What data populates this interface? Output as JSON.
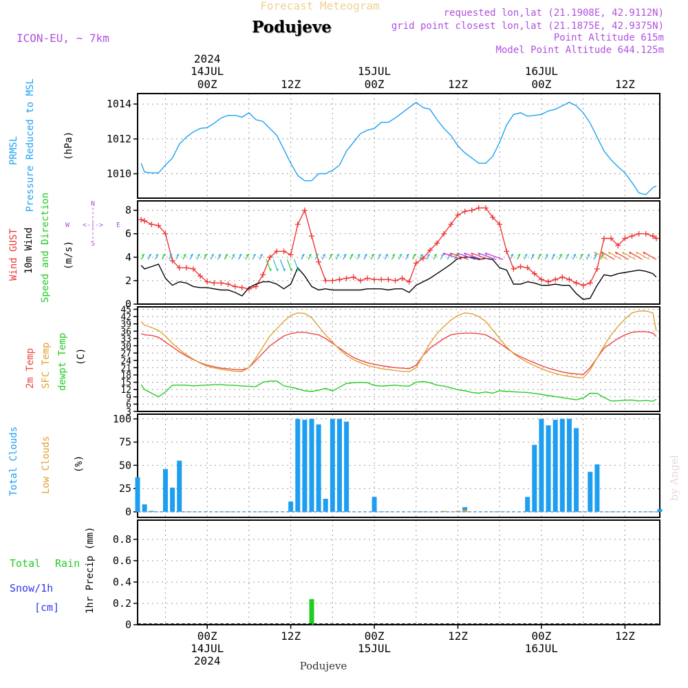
{
  "header": {
    "subtitle": "Forecast Meteogram",
    "title": "Podujeve",
    "model": "ICON-EU, ~ 7km",
    "requested": "requested lon,lat (21.1908E, 42.9112N)",
    "grid": "grid point closest lon,lat (21.1875E, 42.9375N)",
    "point_altitude": "Point Altitude 615m",
    "model_altitude": "Model Point Altitude 644.125m",
    "footer_place": "Podujeve",
    "watermark": "by Angel"
  },
  "time_axis": {
    "top_year": "2024",
    "ticks": [
      {
        "t": 0,
        "label": "00Z",
        "date": "14JUL",
        "year": "2024"
      },
      {
        "t": 12,
        "label": "12Z",
        "date": "",
        "year": ""
      },
      {
        "t": 24,
        "label": "00Z",
        "date": "15JUL",
        "year": ""
      },
      {
        "t": 36,
        "label": "12Z",
        "date": "",
        "year": ""
      },
      {
        "t": 48,
        "label": "00Z",
        "date": "16JUL",
        "year": ""
      },
      {
        "t": 60,
        "label": "12Z",
        "date": "",
        "year": ""
      }
    ],
    "bottom_year": "2024"
  },
  "colors": {
    "pressure": "#1da1f2",
    "gust": "#ee3333",
    "wind10m": "#000000",
    "wind_dir": "#22cc22",
    "t2m": "#ee4444",
    "sfc": "#e0a030",
    "dewpt": "#22cc22",
    "clouds": "#1e9ef0",
    "low_clouds": "#e0a030",
    "rain": "#22cc22",
    "snow": "#3333ee",
    "labels_purple": "#b050e0"
  },
  "panels": {
    "pressure": {
      "label1": "PRMSL",
      "label2": "Pressure Reduced to MSL",
      "unit": "(hPa)"
    },
    "wind": {
      "label1": "Wind GUST",
      "label2": "10m Wind",
      "label3": "Speed and Direction",
      "unit": "(m/s)",
      "compass_n": "N",
      "compass_s": "S",
      "compass_w": "W",
      "compass_e": "E",
      "compass_mid": "<-|->"
    },
    "temp": {
      "label1": "2m Temp",
      "label2": "SFC Temp",
      "label3": "dewpt Temp",
      "unit": "(C)"
    },
    "clouds": {
      "label1": "Total Clouds",
      "label2": "Low Clouds",
      "unit": "(%)"
    },
    "precip": {
      "label1": "Total",
      "label1b": "Rain",
      "label2": "Snow/1h",
      "label3": "[cm]",
      "unit": "1hr Precip (mm)"
    }
  },
  "chart_data": [
    {
      "type": "line",
      "title": "PRMSL Pressure Reduced to MSL",
      "ylabel": "(hPa)",
      "ylim": [
        1008.6,
        1014.6
      ],
      "yticks": [
        1010,
        1012,
        1014
      ],
      "x": [
        -9.5,
        -9,
        -8,
        -7,
        -6,
        -5,
        -4,
        -3,
        -2,
        -1,
        0,
        1,
        2,
        3,
        4,
        5,
        6,
        7,
        8,
        9,
        10,
        11,
        12,
        13,
        14,
        15,
        16,
        17,
        18,
        19,
        20,
        21,
        22,
        23,
        24,
        25,
        26,
        27,
        28,
        29,
        30,
        31,
        32,
        33,
        34,
        35,
        36,
        37,
        38,
        39,
        40,
        41,
        42,
        43,
        44,
        45,
        46,
        47,
        48,
        49,
        50,
        51,
        52,
        53,
        54,
        55,
        56,
        57,
        58,
        59,
        60,
        61,
        62,
        63,
        64,
        64.5
      ],
      "series": [
        {
          "name": "PRMSL",
          "values": [
            1010.6,
            1010.1,
            1010.05,
            1010.05,
            1010.5,
            1010.9,
            1011.7,
            1012.1,
            1012.4,
            1012.6,
            1012.65,
            1012.9,
            1013.2,
            1013.35,
            1013.35,
            1013.25,
            1013.5,
            1013.1,
            1013.0,
            1012.6,
            1012.2,
            1011.4,
            1010.6,
            1009.9,
            1009.6,
            1009.6,
            1010.0,
            1010.0,
            1010.2,
            1010.5,
            1011.3,
            1011.8,
            1012.3,
            1012.5,
            1012.6,
            1012.95,
            1012.95,
            1013.2,
            1013.5,
            1013.8,
            1014.1,
            1013.8,
            1013.7,
            1013.1,
            1012.6,
            1012.2,
            1011.6,
            1011.2,
            1010.9,
            1010.6,
            1010.6,
            1011.0,
            1011.8,
            1012.8,
            1013.4,
            1013.5,
            1013.3,
            1013.35,
            1013.4,
            1013.6,
            1013.7,
            1013.9,
            1014.1,
            1013.9,
            1013.5,
            1012.9,
            1012.1,
            1011.3,
            1010.8,
            1010.4,
            1010.05,
            1009.5,
            1008.9,
            1008.8,
            1009.2,
            1009.3
          ]
        }
      ]
    },
    {
      "type": "line",
      "title": "Wind GUST / 10m Wind",
      "ylabel": "(m/s)",
      "ylim": [
        0,
        8.8
      ],
      "yticks": [
        0,
        2,
        4,
        6,
        8
      ],
      "x": [
        -9.5,
        -9,
        -8,
        -7,
        -6,
        -5,
        -4,
        -3,
        -2,
        -1,
        0,
        1,
        2,
        3,
        4,
        5,
        6,
        7,
        8,
        9,
        10,
        11,
        12,
        13,
        14,
        15,
        16,
        17,
        18,
        19,
        20,
        21,
        22,
        23,
        24,
        25,
        26,
        27,
        28,
        29,
        30,
        31,
        32,
        33,
        34,
        35,
        36,
        37,
        38,
        39,
        40,
        41,
        42,
        43,
        44,
        45,
        46,
        47,
        48,
        49,
        50,
        51,
        52,
        53,
        54,
        55,
        56,
        57,
        58,
        59,
        60,
        61,
        62,
        63,
        64,
        64.5
      ],
      "series": [
        {
          "name": "Wind GUST",
          "values": [
            7.2,
            7.1,
            6.8,
            6.7,
            6.0,
            3.7,
            3.1,
            3.1,
            3.0,
            2.4,
            1.9,
            1.8,
            1.8,
            1.7,
            1.5,
            1.4,
            1.3,
            1.5,
            2.5,
            4.0,
            4.5,
            4.5,
            4.2,
            6.8,
            8.0,
            5.8,
            3.6,
            2.0,
            2.0,
            2.1,
            2.2,
            2.3,
            2.0,
            2.2,
            2.1,
            2.1,
            2.1,
            2.0,
            2.2,
            1.9,
            3.5,
            3.9,
            4.6,
            5.2,
            6.0,
            6.8,
            7.6,
            7.9,
            8.0,
            8.2,
            8.2,
            7.4,
            6.8,
            4.5,
            3.0,
            3.2,
            3.1,
            2.6,
            2.1,
            1.9,
            2.1,
            2.3,
            2.1,
            1.8,
            1.6,
            1.8,
            3.0,
            5.6,
            5.6,
            5.0,
            5.6,
            5.8,
            6.0,
            6.0,
            5.8,
            5.6
          ]
        },
        {
          "name": "10m Wind",
          "values": [
            3.3,
            3.0,
            3.2,
            3.4,
            2.2,
            1.6,
            1.9,
            1.8,
            1.5,
            1.4,
            1.4,
            1.3,
            1.2,
            1.2,
            1.0,
            0.7,
            1.4,
            1.7,
            1.9,
            1.9,
            1.7,
            1.3,
            1.7,
            3.1,
            2.4,
            1.5,
            1.2,
            1.3,
            1.2,
            1.2,
            1.2,
            1.2,
            1.2,
            1.3,
            1.3,
            1.3,
            1.2,
            1.3,
            1.3,
            1.0,
            1.6,
            1.9,
            2.2,
            2.6,
            3.0,
            3.4,
            3.9,
            4.0,
            4.0,
            3.8,
            3.9,
            3.8,
            3.1,
            2.9,
            1.7,
            1.7,
            1.9,
            1.8,
            1.6,
            1.6,
            1.7,
            1.6,
            1.6,
            0.9,
            0.4,
            0.5,
            1.6,
            2.5,
            2.4,
            2.6,
            2.7,
            2.8,
            2.9,
            2.8,
            2.6,
            2.3
          ]
        }
      ]
    },
    {
      "type": "line",
      "title": "2m Temp / SFC Temp / dewpt Temp",
      "ylabel": "(C)",
      "ylim": [
        3,
        46
      ],
      "yticks": [
        3,
        6,
        9,
        12,
        15,
        18,
        21,
        24,
        27,
        30,
        33,
        36,
        39,
        42,
        45
      ],
      "x": [
        -9.5,
        -9,
        -8,
        -7,
        -6,
        -5,
        -4,
        -3,
        -2,
        -1,
        0,
        1,
        2,
        3,
        4,
        5,
        6,
        7,
        8,
        9,
        10,
        11,
        12,
        13,
        14,
        15,
        16,
        17,
        18,
        19,
        20,
        21,
        22,
        23,
        24,
        25,
        26,
        27,
        28,
        29,
        30,
        31,
        32,
        33,
        34,
        35,
        36,
        37,
        38,
        39,
        40,
        41,
        42,
        43,
        44,
        45,
        46,
        47,
        48,
        49,
        50,
        51,
        52,
        53,
        54,
        55,
        56,
        57,
        58,
        59,
        60,
        61,
        62,
        63,
        64,
        64.5
      ],
      "series": [
        {
          "name": "2m Temp",
          "values": [
            35,
            34.5,
            34.3,
            33.5,
            31.5,
            29.5,
            27.5,
            25.8,
            24.3,
            23,
            22,
            21.4,
            20.8,
            20.5,
            20.2,
            20.1,
            21,
            24,
            27,
            30,
            32,
            34,
            35,
            35.5,
            35.5,
            35,
            34.5,
            33,
            31,
            29,
            27,
            25.2,
            24,
            23,
            22.4,
            21.8,
            21.4,
            21,
            20.8,
            20.6,
            22,
            26,
            29,
            31,
            33,
            34.5,
            35,
            35.2,
            35.2,
            35,
            34.5,
            33,
            31,
            29,
            27,
            25.5,
            24.2,
            23,
            21.8,
            20.8,
            20,
            19.2,
            18.7,
            18.4,
            18.2,
            21,
            25,
            29,
            31,
            33,
            34.5,
            35.5,
            35.8,
            35.8,
            35.2,
            33.8
          ]
        },
        {
          "name": "SFC Temp",
          "values": [
            40,
            38.5,
            37.5,
            36.3,
            34,
            31,
            28.5,
            26.3,
            24.5,
            22.8,
            21.6,
            20.9,
            20.3,
            19.9,
            19.5,
            19.4,
            21,
            25,
            29.5,
            34,
            37,
            40,
            42.5,
            43.5,
            43.3,
            41.5,
            38,
            34.5,
            31.5,
            28.5,
            26,
            24.3,
            23,
            21.9,
            21.2,
            20.6,
            20.2,
            19.8,
            19.5,
            19.3,
            21,
            26,
            31,
            35,
            38,
            40.5,
            42.5,
            43.5,
            43.2,
            42,
            40,
            36.5,
            33,
            29.5,
            26.8,
            24.8,
            23.2,
            21.8,
            20.6,
            19.5,
            18.6,
            17.9,
            17.4,
            17,
            16.8,
            20,
            25,
            30,
            34.5,
            38,
            41,
            43.5,
            44.3,
            44.3,
            43.5,
            36
          ]
        },
        {
          "name": "dewpt Temp",
          "values": [
            14,
            12,
            10.5,
            9,
            11,
            13.8,
            13.8,
            13.8,
            13.5,
            13.7,
            13.8,
            14,
            14,
            13.8,
            13.7,
            13.5,
            13.3,
            13.2,
            15,
            15.5,
            15.5,
            13.5,
            13,
            12.3,
            11.5,
            11.2,
            11.7,
            12.5,
            11.4,
            13,
            14.5,
            14.8,
            14.9,
            14.8,
            13.7,
            13.4,
            13.6,
            13.8,
            13.5,
            13.4,
            15,
            15.3,
            14.8,
            13.8,
            13.4,
            12.7,
            11.9,
            11.5,
            10.8,
            10.5,
            11,
            10.5,
            11.5,
            11.2,
            11.1,
            10.9,
            10.8,
            10.4,
            10,
            9.5,
            9.1,
            8.7,
            8.2,
            7.8,
            8.5,
            10.5,
            10.4,
            8.7,
            7.3,
            7.4,
            7.6,
            7.7,
            7.3,
            7.5,
            7.2,
            8
          ]
        }
      ]
    },
    {
      "type": "bar",
      "title": "Total Clouds / Low Clouds",
      "ylabel": "(%)",
      "ylim": [
        -6,
        105
      ],
      "yticks": [
        0,
        25,
        50,
        75,
        100
      ],
      "x": [
        -10,
        -9,
        -8,
        -7,
        -6,
        -5,
        -4,
        -3,
        -2,
        -1,
        0,
        1,
        2,
        3,
        4,
        5,
        6,
        7,
        8,
        9,
        10,
        11,
        12,
        13,
        14,
        15,
        16,
        17,
        18,
        19,
        20,
        21,
        22,
        23,
        24,
        25,
        26,
        27,
        28,
        29,
        30,
        31,
        32,
        33,
        34,
        35,
        36,
        37,
        38,
        39,
        40,
        41,
        42,
        43,
        44,
        45,
        46,
        47,
        48,
        49,
        50,
        51,
        52,
        53,
        54,
        55,
        56,
        57,
        58,
        59,
        60,
        61,
        62,
        63,
        64,
        65
      ],
      "series": [
        {
          "name": "Total Clouds",
          "values": [
            37,
            8,
            1,
            0,
            46,
            26,
            55,
            0,
            0,
            0,
            0,
            0,
            0,
            0,
            0,
            0,
            0,
            0,
            0,
            0,
            0,
            0,
            11,
            100,
            99,
            100,
            94,
            14,
            100,
            100,
            97,
            0,
            0,
            0,
            16,
            0,
            0,
            0,
            0,
            0,
            0,
            0,
            0,
            0,
            0,
            0,
            1,
            5,
            0,
            0,
            0,
            0,
            0,
            0,
            0,
            0,
            16,
            72,
            100,
            93,
            99,
            100,
            100,
            90,
            0,
            43,
            51,
            0,
            0,
            0,
            0,
            0,
            0,
            0,
            0,
            3
          ]
        },
        {
          "name": "Low Clouds",
          "values": [
            0,
            0,
            0,
            0,
            0,
            0,
            0,
            0,
            0,
            0,
            0,
            0,
            0,
            0,
            0,
            0,
            0,
            0,
            0,
            0,
            0,
            0,
            0,
            0,
            0,
            0,
            0,
            0,
            0,
            0,
            0,
            0,
            0,
            0,
            0,
            0,
            0,
            0,
            0,
            0,
            0,
            0,
            0,
            0,
            1,
            0,
            1,
            2,
            0,
            0,
            0,
            0,
            0,
            0,
            0,
            0,
            0,
            0,
            0,
            0,
            0,
            0,
            0,
            0,
            0,
            0,
            0,
            0,
            0,
            0,
            0,
            0,
            0,
            0,
            0,
            0
          ]
        }
      ]
    },
    {
      "type": "bar",
      "title": "1hr Precip",
      "ylabel": "1hr Precip (mm)",
      "ylim": [
        0,
        0.98
      ],
      "yticks": [
        0,
        0.2,
        0.4,
        0.6,
        0.8
      ],
      "x": [
        15
      ],
      "series": [
        {
          "name": "Total Rain",
          "values": [
            0.24
          ]
        }
      ]
    }
  ]
}
